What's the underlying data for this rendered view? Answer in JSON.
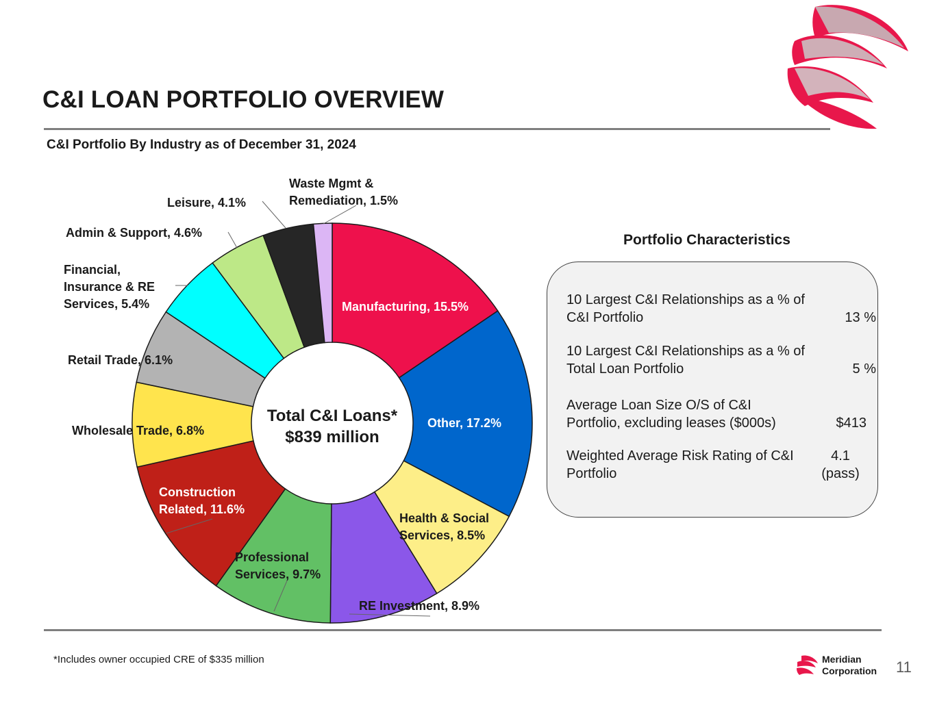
{
  "header": {
    "title": "C&I LOAN PORTFOLIO OVERVIEW",
    "subtitle": "C&I Portfolio By Industry as of December 31, 2024"
  },
  "chart_data": {
    "type": "pie",
    "title": "C&I Portfolio By Industry as of December 31, 2024",
    "center_label": [
      "Total C&I Loans*",
      "$839 million"
    ],
    "slices": [
      {
        "name": "Manufacturing",
        "value": 15.5,
        "label": [
          "Manufacturing, 15.5%"
        ],
        "color": "#ee114c",
        "text_color": "#ffffff"
      },
      {
        "name": "Other",
        "value": 17.2,
        "label": [
          "Other, 17.2%"
        ],
        "color": "#0066cc",
        "text_color": "#ffffff"
      },
      {
        "name": "Health & Social Services",
        "value": 8.5,
        "label": [
          "Health & Social",
          "Services, 8.5%"
        ],
        "color": "#fdee88",
        "text_color": "#1a1a1a"
      },
      {
        "name": "RE Investment",
        "value": 8.9,
        "label": [
          "RE Investment, 8.9%"
        ],
        "color": "#8b57e9",
        "text_color": "#1a1a1a"
      },
      {
        "name": "Professional Services",
        "value": 9.7,
        "label": [
          "Professional",
          "Services, 9.7%"
        ],
        "color": "#62c065",
        "text_color": "#1a1a1a"
      },
      {
        "name": "Construction Related",
        "value": 11.6,
        "label": [
          "Construction",
          "Related, 11.6%"
        ],
        "color": "#bf2018",
        "text_color": "#ffffff"
      },
      {
        "name": "Wholesale Trade",
        "value": 6.8,
        "label": [
          "Wholesale Trade, 6.8%"
        ],
        "color": "#ffe44d",
        "text_color": "#1a1a1a"
      },
      {
        "name": "Retail Trade",
        "value": 6.1,
        "label": [
          "Retail Trade, 6.1%"
        ],
        "color": "#b3b3b3",
        "text_color": "#1a1a1a"
      },
      {
        "name": "Financial, Insurance & RE Services",
        "value": 5.4,
        "label": [
          "Financial,",
          "Insurance & RE",
          "Services, 5.4%"
        ],
        "color": "#00ffff",
        "text_color": "#1a1a1a"
      },
      {
        "name": "Admin & Support",
        "value": 4.6,
        "label": [
          "Admin & Support, 4.6%"
        ],
        "color": "#bde887",
        "text_color": "#1a1a1a"
      },
      {
        "name": "Leisure",
        "value": 4.1,
        "label": [
          "Leisure, 4.1%"
        ],
        "color": "#262626",
        "text_color": "#1a1a1a"
      },
      {
        "name": "Waste Mgmt & Remediation",
        "value": 1.5,
        "label": [
          "Waste Mgmt &",
          "Remediation, 1.5%"
        ],
        "color": "#dcb6f5",
        "text_color": "#1a1a1a"
      }
    ]
  },
  "portfolio": {
    "title": "Portfolio Characteristics",
    "rows": [
      {
        "label": "10 Largest C&I Relationships as a % of C&I Portfolio",
        "value": "13 %"
      },
      {
        "label": "10 Largest C&I Relationships as a % of Total Loan Portfolio",
        "value": "5 %"
      },
      {
        "label": "Average Loan Size O/S of C&I Portfolio, excluding leases ($000s)",
        "value": "$413"
      },
      {
        "label": "Weighted Average Risk Rating of C&I Portfolio",
        "value": "4.1 (pass)"
      }
    ]
  },
  "footer": {
    "footnote": "*Includes owner occupied CRE of $335 million",
    "brand_line1": "Meridian",
    "brand_line2": "Corporation",
    "page_number": "11"
  },
  "colors": {
    "brand": "#e8174b",
    "rule": "#7f7f7f"
  },
  "icons": {
    "logo": "meridian-swirl-logo"
  }
}
